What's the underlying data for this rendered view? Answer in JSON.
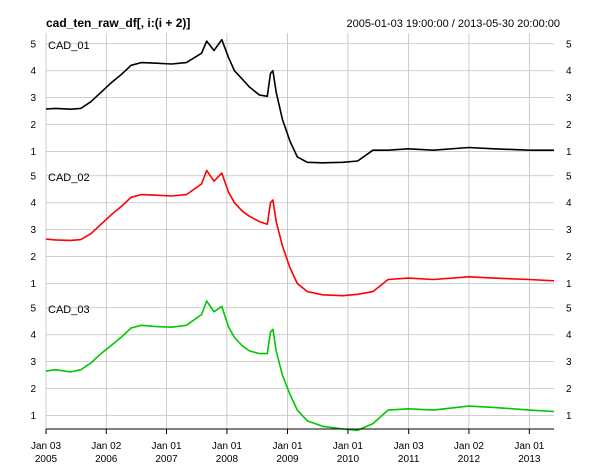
{
  "chart_data": {
    "type": "line",
    "title": "cad_ten_raw_df[, i:(i + 2)]",
    "date_range": "2005-01-03 19:00:00 / 2013-05-30 20:00:00",
    "x_range": [
      "2005-01-03",
      "2013-05-30"
    ],
    "x_ticks": [
      {
        "date": "2005-01-03",
        "line1": "Jan 03",
        "line2": "2005"
      },
      {
        "date": "2006-01-02",
        "line1": "Jan 02",
        "line2": "2006"
      },
      {
        "date": "2007-01-01",
        "line1": "Jan 01",
        "line2": "2007"
      },
      {
        "date": "2008-01-01",
        "line1": "Jan 01",
        "line2": "2008"
      },
      {
        "date": "2009-01-01",
        "line1": "Jan 01",
        "line2": "2009"
      },
      {
        "date": "2010-01-01",
        "line1": "Jan 01",
        "line2": "2010"
      },
      {
        "date": "2011-01-03",
        "line1": "Jan 03",
        "line2": "2011"
      },
      {
        "date": "2012-01-02",
        "line1": "Jan 02",
        "line2": "2012"
      },
      {
        "date": "2013-01-01",
        "line1": "Jan 01",
        "line2": "2013"
      }
    ],
    "y_ticks": [
      1,
      2,
      3,
      4,
      5
    ],
    "ylim": [
      0.5,
      5.4
    ],
    "grid": true,
    "panels": [
      {
        "name": "CAD_01",
        "color": "#000000",
        "points": [
          [
            "2005-01-03",
            2.58
          ],
          [
            "2005-03-01",
            2.6
          ],
          [
            "2005-06-01",
            2.57
          ],
          [
            "2005-08-01",
            2.6
          ],
          [
            "2005-10-01",
            2.85
          ],
          [
            "2005-12-01",
            3.2
          ],
          [
            "2006-02-01",
            3.55
          ],
          [
            "2006-04-01",
            3.85
          ],
          [
            "2006-06-01",
            4.2
          ],
          [
            "2006-08-01",
            4.3
          ],
          [
            "2006-11-01",
            4.28
          ],
          [
            "2007-02-01",
            4.25
          ],
          [
            "2007-05-01",
            4.3
          ],
          [
            "2007-08-01",
            4.65
          ],
          [
            "2007-09-01",
            5.1
          ],
          [
            "2007-10-15",
            4.75
          ],
          [
            "2007-12-01",
            5.15
          ],
          [
            "2008-01-10",
            4.5
          ],
          [
            "2008-02-15",
            4.0
          ],
          [
            "2008-04-01",
            3.7
          ],
          [
            "2008-05-15",
            3.4
          ],
          [
            "2008-07-15",
            3.1
          ],
          [
            "2008-09-01",
            3.05
          ],
          [
            "2008-09-20",
            3.9
          ],
          [
            "2008-10-05",
            4.0
          ],
          [
            "2008-10-25",
            3.2
          ],
          [
            "2008-12-01",
            2.2
          ],
          [
            "2009-01-15",
            1.4
          ],
          [
            "2009-03-01",
            0.8
          ],
          [
            "2009-05-01",
            0.6
          ],
          [
            "2009-08-01",
            0.58
          ],
          [
            "2009-12-01",
            0.6
          ],
          [
            "2010-03-01",
            0.65
          ],
          [
            "2010-06-01",
            1.05
          ],
          [
            "2010-09-01",
            1.05
          ],
          [
            "2011-01-01",
            1.1
          ],
          [
            "2011-06-01",
            1.05
          ],
          [
            "2012-01-01",
            1.15
          ],
          [
            "2012-06-01",
            1.1
          ],
          [
            "2013-01-01",
            1.05
          ],
          [
            "2013-05-30",
            1.05
          ]
        ]
      },
      {
        "name": "CAD_02",
        "color": "#ff0000",
        "points": [
          [
            "2005-01-03",
            2.65
          ],
          [
            "2005-03-01",
            2.62
          ],
          [
            "2005-06-01",
            2.6
          ],
          [
            "2005-08-01",
            2.63
          ],
          [
            "2005-10-01",
            2.85
          ],
          [
            "2005-12-01",
            3.2
          ],
          [
            "2006-02-01",
            3.55
          ],
          [
            "2006-04-01",
            3.85
          ],
          [
            "2006-06-01",
            4.2
          ],
          [
            "2006-08-01",
            4.3
          ],
          [
            "2006-11-01",
            4.28
          ],
          [
            "2007-02-01",
            4.25
          ],
          [
            "2007-05-01",
            4.3
          ],
          [
            "2007-08-01",
            4.7
          ],
          [
            "2007-09-01",
            5.2
          ],
          [
            "2007-10-15",
            4.8
          ],
          [
            "2007-12-01",
            5.1
          ],
          [
            "2008-01-10",
            4.4
          ],
          [
            "2008-02-15",
            4.0
          ],
          [
            "2008-04-01",
            3.7
          ],
          [
            "2008-05-15",
            3.5
          ],
          [
            "2008-07-15",
            3.3
          ],
          [
            "2008-09-01",
            3.2
          ],
          [
            "2008-09-20",
            4.0
          ],
          [
            "2008-10-05",
            4.1
          ],
          [
            "2008-10-25",
            3.3
          ],
          [
            "2008-12-01",
            2.4
          ],
          [
            "2009-01-15",
            1.6
          ],
          [
            "2009-03-01",
            1.0
          ],
          [
            "2009-05-01",
            0.7
          ],
          [
            "2009-08-01",
            0.58
          ],
          [
            "2009-12-01",
            0.55
          ],
          [
            "2010-03-01",
            0.6
          ],
          [
            "2010-06-01",
            0.7
          ],
          [
            "2010-09-01",
            1.15
          ],
          [
            "2011-01-01",
            1.2
          ],
          [
            "2011-06-01",
            1.15
          ],
          [
            "2012-01-01",
            1.25
          ],
          [
            "2012-06-01",
            1.2
          ],
          [
            "2013-01-01",
            1.15
          ],
          [
            "2013-05-30",
            1.1
          ]
        ]
      },
      {
        "name": "CAD_03",
        "color": "#00c800",
        "points": [
          [
            "2005-01-03",
            2.65
          ],
          [
            "2005-03-01",
            2.7
          ],
          [
            "2005-06-01",
            2.62
          ],
          [
            "2005-08-01",
            2.7
          ],
          [
            "2005-10-01",
            2.95
          ],
          [
            "2005-12-01",
            3.3
          ],
          [
            "2006-02-01",
            3.6
          ],
          [
            "2006-04-01",
            3.9
          ],
          [
            "2006-06-01",
            4.25
          ],
          [
            "2006-08-01",
            4.35
          ],
          [
            "2006-11-01",
            4.3
          ],
          [
            "2007-02-01",
            4.28
          ],
          [
            "2007-05-01",
            4.35
          ],
          [
            "2007-08-01",
            4.75
          ],
          [
            "2007-09-01",
            5.25
          ],
          [
            "2007-10-15",
            4.85
          ],
          [
            "2007-12-01",
            5.05
          ],
          [
            "2008-01-10",
            4.3
          ],
          [
            "2008-02-15",
            3.9
          ],
          [
            "2008-04-01",
            3.6
          ],
          [
            "2008-05-15",
            3.4
          ],
          [
            "2008-07-15",
            3.3
          ],
          [
            "2008-09-01",
            3.3
          ],
          [
            "2008-09-20",
            4.1
          ],
          [
            "2008-10-05",
            4.2
          ],
          [
            "2008-10-25",
            3.4
          ],
          [
            "2008-12-01",
            2.5
          ],
          [
            "2009-01-15",
            1.8
          ],
          [
            "2009-03-01",
            1.2
          ],
          [
            "2009-05-01",
            0.8
          ],
          [
            "2009-08-01",
            0.6
          ],
          [
            "2009-12-01",
            0.5
          ],
          [
            "2010-03-01",
            0.45
          ],
          [
            "2010-06-01",
            0.7
          ],
          [
            "2010-09-01",
            1.2
          ],
          [
            "2011-01-01",
            1.25
          ],
          [
            "2011-06-01",
            1.2
          ],
          [
            "2012-01-01",
            1.35
          ],
          [
            "2012-06-01",
            1.3
          ],
          [
            "2013-01-01",
            1.2
          ],
          [
            "2013-05-30",
            1.15
          ]
        ]
      }
    ]
  }
}
